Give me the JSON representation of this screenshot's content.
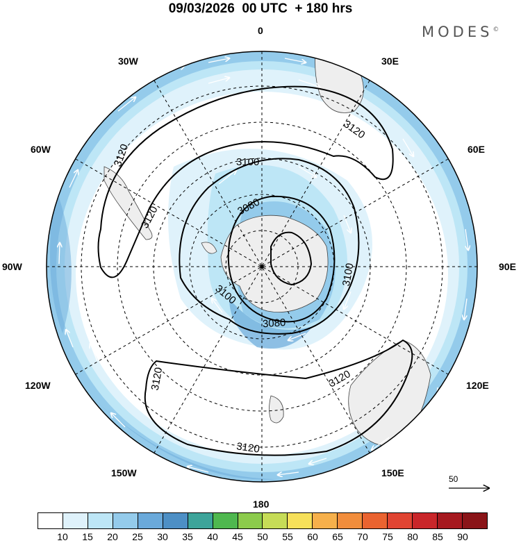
{
  "title": "09/03/2026  00 UTC  + 180 hrs",
  "brand": "MODES",
  "brand_mark": "©",
  "longitude_labels": {
    "top": "0",
    "top_right": "30E",
    "right_upper": "60E",
    "right": "90E",
    "right_lower": "120E",
    "bottom_right": "150E",
    "bottom": "180",
    "bottom_left": "150W",
    "left_lower": "120W",
    "left": "90W",
    "left_upper": "60W",
    "top_left": "30W"
  },
  "contours": {
    "label_3120_a": "3120",
    "label_3120_b": "3120",
    "label_3120_c": "3120",
    "label_3120_d": "3120",
    "label_3120_e": "3120",
    "label_3100_a": "3100",
    "label_3100_b": "3100",
    "label_3100_c": "3100",
    "label_3080_a": "3080",
    "label_3080_b": "3080"
  },
  "reference_vector": "50",
  "colorbar": {
    "colors": [
      "#ffffff",
      "#dff2fb",
      "#bde6f6",
      "#94cbeb",
      "#6aa9da",
      "#4d8fc5",
      "#3da49a",
      "#4fb84f",
      "#8ccb4c",
      "#c6dc57",
      "#f6e05a",
      "#f6b04b",
      "#f18d3c",
      "#ea6330",
      "#e04432",
      "#c9262a",
      "#a6191f",
      "#8a1418"
    ],
    "ticks": [
      "10",
      "15",
      "20",
      "25",
      "30",
      "35",
      "40",
      "45",
      "50",
      "55",
      "60",
      "65",
      "70",
      "75",
      "80",
      "85",
      "90"
    ]
  }
}
